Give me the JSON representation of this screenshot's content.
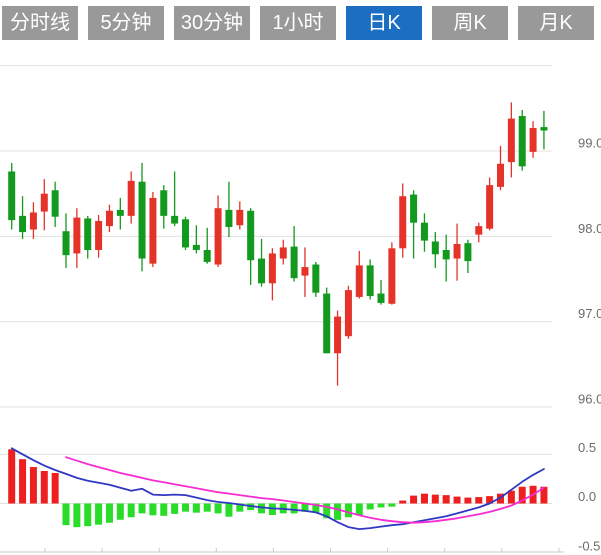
{
  "toolbar": {
    "tabs": [
      {
        "label": "分时线",
        "active": false
      },
      {
        "label": "5分钟",
        "active": false
      },
      {
        "label": "30分钟",
        "active": false
      },
      {
        "label": "1小时",
        "active": false
      },
      {
        "label": "日K",
        "active": true
      },
      {
        "label": "周K",
        "active": false
      },
      {
        "label": "月K",
        "active": false
      }
    ],
    "active_bg": "#1b6ec2",
    "inactive_bg": "#999999",
    "text_color": "#ffffff"
  },
  "colors": {
    "candle_up": "#e5332a",
    "candle_down": "#13991e",
    "hist_up": "#ee1f1f",
    "hist_down": "#28dc28",
    "dif_line": "#3038c3",
    "dea_line": "#f72bd2",
    "grid": "#e0e0e0",
    "axis": "#c8c8c8",
    "label": "#6b6b6b"
  },
  "chart_data": [
    {
      "type": "candlestick",
      "title": "daily-k-price-panel",
      "grid": true,
      "ylim": [
        95.8,
        100.05
      ],
      "y_ticks": [
        {
          "label": "99.0",
          "value": 99.0
        },
        {
          "label": "98.0",
          "value": 98.0
        },
        {
          "label": "97.0",
          "value": 97.0
        },
        {
          "label": "96.0",
          "value": 96.0
        }
      ],
      "unlabeled_grid_values": [
        100.0
      ],
      "legend": "none",
      "xlabel": "",
      "ylabel": "",
      "candles_ohlc": [
        [
          98.76,
          98.86,
          98.08,
          98.19
        ],
        [
          98.24,
          98.47,
          97.97,
          98.05
        ],
        [
          98.08,
          98.4,
          97.97,
          98.28
        ],
        [
          98.29,
          98.67,
          98.07,
          98.5
        ],
        [
          98.54,
          98.64,
          98.11,
          98.23
        ],
        [
          98.06,
          98.27,
          97.63,
          97.78
        ],
        [
          97.8,
          98.33,
          97.63,
          98.22
        ],
        [
          98.21,
          98.24,
          97.74,
          97.84
        ],
        [
          97.84,
          98.25,
          97.75,
          98.18
        ],
        [
          98.12,
          98.37,
          98.05,
          98.3
        ],
        [
          98.31,
          98.45,
          98.08,
          98.24
        ],
        [
          98.24,
          98.76,
          98.15,
          98.65
        ],
        [
          98.64,
          98.86,
          97.59,
          97.74
        ],
        [
          97.68,
          98.52,
          97.64,
          98.45
        ],
        [
          98.54,
          98.6,
          98.09,
          98.24
        ],
        [
          98.24,
          98.76,
          98.12,
          98.15
        ],
        [
          98.2,
          98.23,
          97.84,
          97.87
        ],
        [
          97.9,
          98.13,
          97.8,
          97.84
        ],
        [
          97.84,
          98.1,
          97.68,
          97.7
        ],
        [
          97.67,
          98.48,
          97.64,
          98.33
        ],
        [
          98.31,
          98.64,
          97.99,
          98.11
        ],
        [
          98.13,
          98.41,
          98.08,
          98.31
        ],
        [
          98.3,
          98.33,
          97.43,
          97.72
        ],
        [
          97.74,
          97.97,
          97.41,
          97.45
        ],
        [
          97.45,
          97.86,
          97.25,
          97.8
        ],
        [
          97.74,
          97.96,
          97.67,
          97.87
        ],
        [
          97.88,
          98.12,
          97.47,
          97.51
        ],
        [
          97.54,
          97.87,
          97.29,
          97.64
        ],
        [
          97.67,
          97.7,
          97.29,
          97.34
        ],
        [
          97.33,
          97.4,
          96.63,
          96.63
        ],
        [
          96.63,
          97.13,
          96.25,
          97.06
        ],
        [
          96.83,
          97.42,
          96.8,
          97.37
        ],
        [
          97.29,
          97.83,
          97.27,
          97.66
        ],
        [
          97.66,
          97.73,
          97.26,
          97.3
        ],
        [
          97.33,
          97.49,
          97.2,
          97.22
        ],
        [
          97.21,
          97.93,
          97.2,
          97.86
        ],
        [
          97.86,
          98.62,
          97.75,
          98.47
        ],
        [
          98.49,
          98.54,
          97.74,
          98.16
        ],
        [
          98.16,
          98.27,
          97.82,
          97.95
        ],
        [
          97.94,
          98.05,
          97.63,
          97.79
        ],
        [
          97.84,
          98.02,
          97.47,
          97.73
        ],
        [
          97.74,
          98.15,
          97.48,
          97.91
        ],
        [
          97.92,
          97.96,
          97.57,
          97.71
        ],
        [
          98.02,
          98.16,
          97.93,
          98.12
        ],
        [
          98.09,
          98.69,
          98.07,
          98.6
        ],
        [
          98.58,
          99.06,
          98.54,
          98.85
        ],
        [
          98.87,
          99.57,
          98.69,
          99.38
        ],
        [
          99.41,
          99.48,
          98.77,
          98.82
        ],
        [
          98.99,
          99.35,
          98.92,
          99.27
        ],
        [
          99.28,
          99.47,
          99.02,
          99.24
        ]
      ]
    },
    {
      "type": "bar",
      "title": "macd-indicator-panel",
      "grid": true,
      "ylim": [
        -0.55,
        0.6
      ],
      "y_ticks": [
        {
          "label": "0.5",
          "value": 0.5
        },
        {
          "label": "0.0",
          "value": 0.0
        },
        {
          "label": "-0.5",
          "value": -0.5
        }
      ],
      "x_axis_tick_count": 10,
      "series": [
        {
          "name": "macd-histogram",
          "type": "bar",
          "values": [
            0.55,
            0.45,
            0.37,
            0.33,
            0.31,
            -0.22,
            -0.24,
            -0.23,
            -0.215,
            -0.195,
            -0.165,
            -0.14,
            -0.1,
            -0.12,
            -0.125,
            -0.105,
            -0.083,
            -0.093,
            -0.083,
            -0.1,
            -0.134,
            -0.083,
            -0.066,
            -0.1,
            -0.117,
            -0.1,
            -0.1,
            -0.083,
            -0.093,
            -0.15,
            -0.166,
            -0.14,
            -0.117,
            -0.06,
            -0.04,
            -0.032,
            0.03,
            0.08,
            0.1,
            0.09,
            0.085,
            0.07,
            0.06,
            0.065,
            0.075,
            0.1,
            0.13,
            0.17,
            0.18,
            0.17
          ]
        },
        {
          "name": "dif-line",
          "type": "line",
          "values": [
            0.56,
            0.5,
            0.44,
            0.385,
            0.34,
            0.3,
            0.26,
            0.23,
            0.21,
            0.19,
            0.16,
            0.13,
            0.15,
            0.09,
            0.085,
            0.09,
            0.085,
            0.06,
            0.035,
            0.015,
            0.005,
            -0.01,
            -0.025,
            -0.04,
            -0.05,
            -0.055,
            -0.065,
            -0.075,
            -0.09,
            -0.13,
            -0.19,
            -0.24,
            -0.26,
            -0.25,
            -0.235,
            -0.22,
            -0.21,
            -0.19,
            -0.17,
            -0.15,
            -0.13,
            -0.1,
            -0.07,
            -0.04,
            0.0,
            0.06,
            0.14,
            0.22,
            0.29,
            0.35
          ]
        },
        {
          "name": "dea-line",
          "type": "line",
          "values": [
            null,
            null,
            null,
            null,
            null,
            0.47,
            0.435,
            0.4,
            0.37,
            0.34,
            0.31,
            0.285,
            0.26,
            0.235,
            0.215,
            0.195,
            0.175,
            0.155,
            0.135,
            0.115,
            0.1,
            0.085,
            0.07,
            0.055,
            0.045,
            0.03,
            0.015,
            0.0,
            -0.015,
            -0.035,
            -0.06,
            -0.09,
            -0.12,
            -0.145,
            -0.165,
            -0.18,
            -0.19,
            -0.195,
            -0.19,
            -0.18,
            -0.165,
            -0.15,
            -0.13,
            -0.11,
            -0.085,
            -0.055,
            -0.02,
            0.03,
            0.09,
            0.16
          ]
        }
      ]
    }
  ]
}
